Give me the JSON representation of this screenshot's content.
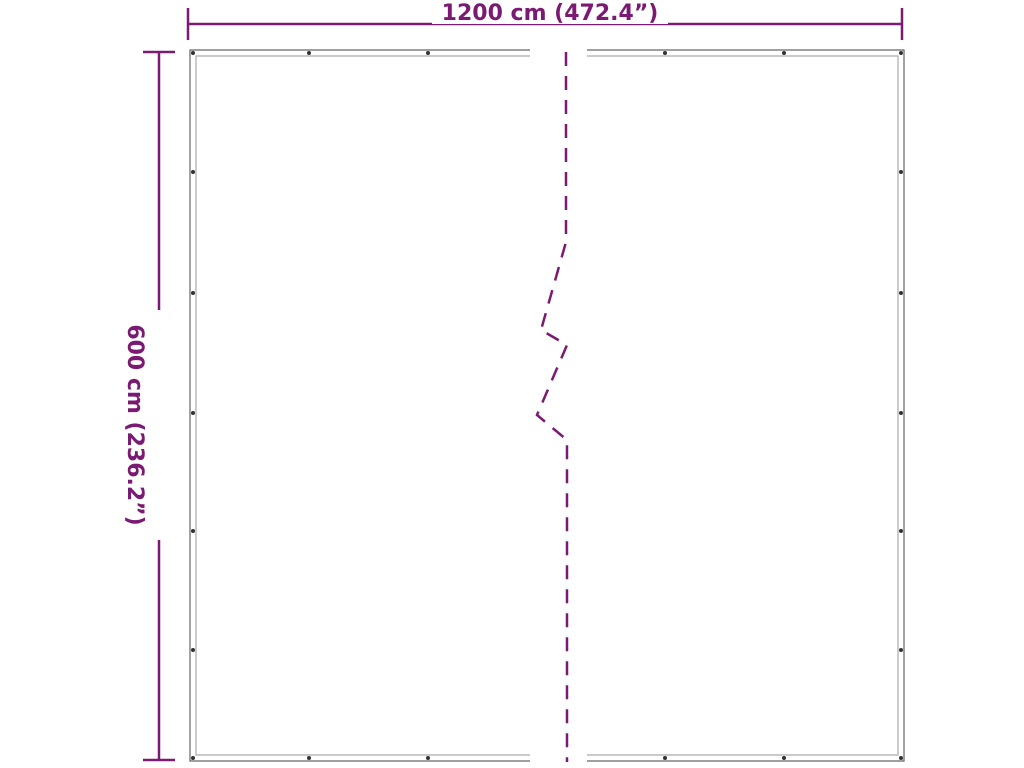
{
  "width_label": "1200 cm (472.4”)",
  "height_label": "600 cm (236.2”)",
  "colors": {
    "dimension": "#7b1a72",
    "outline": "#555555"
  }
}
